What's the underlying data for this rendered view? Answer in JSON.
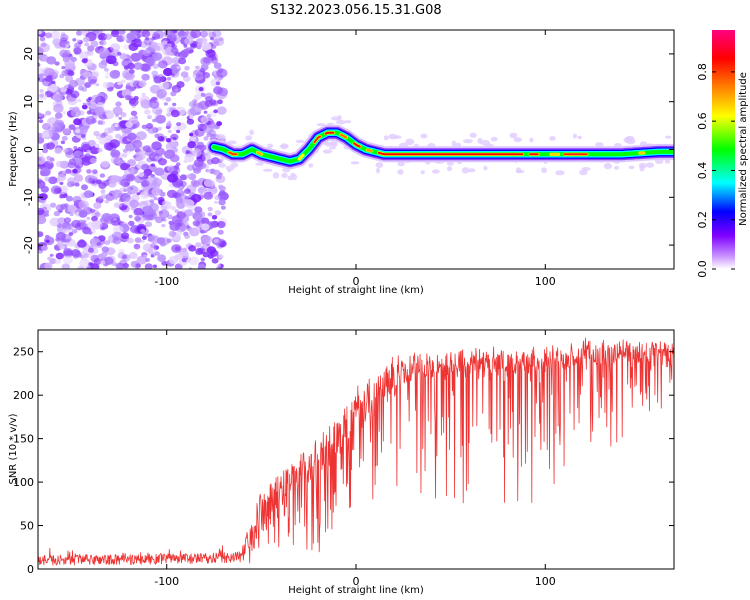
{
  "title": "S132.2023.056.15.31.G08",
  "chart_data": [
    {
      "type": "heatmap",
      "xlabel": "Height of straight line (km)",
      "ylabel": "Frequency (Hz)",
      "xlim": [
        -168,
        168
      ],
      "ylim": [
        -25,
        25
      ],
      "xticks": [
        -100,
        0,
        100
      ],
      "yticks": [
        -20,
        -10,
        0,
        10,
        20
      ],
      "noise_region_x": [
        -168,
        -72
      ],
      "signal_ridge": {
        "x": [
          -75,
          -70,
          -65,
          -60,
          -55,
          -50,
          -45,
          -40,
          -35,
          -30,
          -25,
          -20,
          -15,
          -10,
          -5,
          0,
          5,
          10,
          15,
          20,
          40,
          60,
          80,
          100,
          120,
          140,
          160,
          168
        ],
        "freq": [
          0.5,
          0,
          -1,
          -1,
          0,
          -1,
          -1.5,
          -2,
          -2.5,
          -2,
          0,
          2.5,
          3.5,
          3.5,
          2.5,
          1,
          0,
          -0.5,
          -1,
          -1,
          -1,
          -1,
          -1,
          -1,
          -1,
          -1,
          -0.5,
          -0.5
        ]
      },
      "colorbar": {
        "label": "Normalized spectral amplitude",
        "range": [
          0.0,
          0.97
        ],
        "ticks": [
          "0.0",
          "0.2",
          "0.4",
          "0.6",
          "0.8"
        ],
        "colors": [
          "#ffffff",
          "#cc99ff",
          "#7f00ff",
          "#0000ff",
          "#00ffff",
          "#00ff00",
          "#ffff00",
          "#ff8000",
          "#ff0000",
          "#ff0080"
        ]
      }
    },
    {
      "type": "line",
      "xlabel": "Height of straight line (km)",
      "ylabel": "SNR (10 * v/v)",
      "xlim": [
        -168,
        168
      ],
      "ylim": [
        0,
        275
      ],
      "xticks": [
        -100,
        0,
        100
      ],
      "yticks": [
        0,
        50,
        100,
        150,
        200,
        250
      ],
      "color": "#ee3333",
      "envelope": {
        "x": [
          -168,
          -120,
          -80,
          -60,
          -55,
          -50,
          -40,
          -30,
          -20,
          -10,
          0,
          10,
          15,
          20,
          30,
          50,
          80,
          100,
          120,
          140,
          168
        ],
        "mean": [
          10,
          11,
          12,
          14,
          30,
          45,
          70,
          90,
          110,
          135,
          160,
          180,
          200,
          210,
          220,
          230,
          235,
          235,
          240,
          242,
          238
        ],
        "top": [
          20,
          25,
          28,
          30,
          70,
          95,
          120,
          140,
          160,
          185,
          215,
          235,
          245,
          250,
          255,
          258,
          260,
          262,
          270,
          268,
          265
        ],
        "low": [
          2,
          2,
          2,
          3,
          5,
          10,
          15,
          20,
          10,
          40,
          60,
          75,
          80,
          85,
          90,
          75,
          70,
          80,
          110,
          145,
          195
        ]
      }
    }
  ]
}
